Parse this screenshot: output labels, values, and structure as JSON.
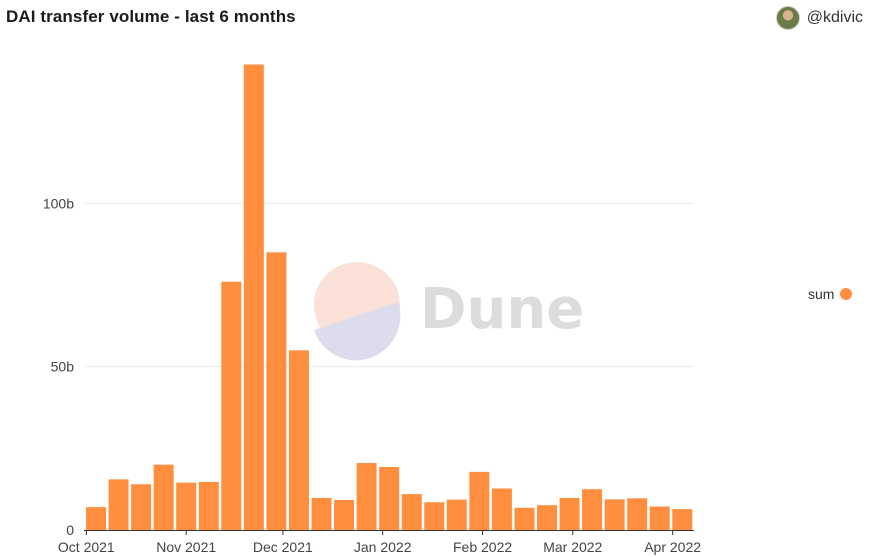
{
  "header": {
    "title": "DAI transfer volume - last 6 months",
    "author": "@kdivic"
  },
  "watermark": {
    "text": "Dune"
  },
  "legend": {
    "label": "sum",
    "color": "#ff8f3f"
  },
  "chart_data": {
    "type": "bar",
    "title": "DAI transfer volume - last 6 months",
    "xlabel": "",
    "ylabel": "",
    "grid": true,
    "legend_position": "right",
    "bar_color": "#ff8f3f",
    "ylim": [
      0,
      150000000000
    ],
    "y_ticks": [
      {
        "value": 0,
        "label": "0"
      },
      {
        "value": 50000000000,
        "label": "50b"
      },
      {
        "value": 100000000000,
        "label": "100b"
      }
    ],
    "x_ticks": [
      {
        "date": "2021-10-01",
        "label": "Oct 2021"
      },
      {
        "date": "2021-11-01",
        "label": "Nov 2021"
      },
      {
        "date": "2021-12-01",
        "label": "Dec 2021"
      },
      {
        "date": "2022-01-01",
        "label": "Jan 2022"
      },
      {
        "date": "2022-02-01",
        "label": "Feb 2022"
      },
      {
        "date": "2022-03-01",
        "label": "Mar 2022"
      },
      {
        "date": "2022-04-01",
        "label": "Apr 2022"
      }
    ],
    "series": [
      {
        "name": "sum",
        "points": [
          {
            "week": "2021-10-04",
            "value": 7000000000
          },
          {
            "week": "2021-10-11",
            "value": 15500000000
          },
          {
            "week": "2021-10-18",
            "value": 14000000000
          },
          {
            "week": "2021-10-25",
            "value": 20000000000
          },
          {
            "week": "2021-11-01",
            "value": 14500000000
          },
          {
            "week": "2021-11-08",
            "value": 14700000000
          },
          {
            "week": "2021-11-15",
            "value": 76000000000
          },
          {
            "week": "2021-11-22",
            "value": 142500000000
          },
          {
            "week": "2021-11-29",
            "value": 85000000000
          },
          {
            "week": "2021-12-06",
            "value": 55000000000
          },
          {
            "week": "2021-12-13",
            "value": 9800000000
          },
          {
            "week": "2021-12-20",
            "value": 9200000000
          },
          {
            "week": "2021-12-27",
            "value": 20500000000
          },
          {
            "week": "2022-01-03",
            "value": 19300000000
          },
          {
            "week": "2022-01-10",
            "value": 11000000000
          },
          {
            "week": "2022-01-17",
            "value": 8500000000
          },
          {
            "week": "2022-01-24",
            "value": 9300000000
          },
          {
            "week": "2022-01-31",
            "value": 17800000000
          },
          {
            "week": "2022-02-07",
            "value": 12700000000
          },
          {
            "week": "2022-02-14",
            "value": 6800000000
          },
          {
            "week": "2022-02-21",
            "value": 7600000000
          },
          {
            "week": "2022-02-28",
            "value": 9800000000
          },
          {
            "week": "2022-03-07",
            "value": 12500000000
          },
          {
            "week": "2022-03-14",
            "value": 9400000000
          },
          {
            "week": "2022-03-21",
            "value": 9700000000
          },
          {
            "week": "2022-03-28",
            "value": 7200000000
          },
          {
            "week": "2022-04-04",
            "value": 6400000000
          }
        ]
      }
    ]
  }
}
